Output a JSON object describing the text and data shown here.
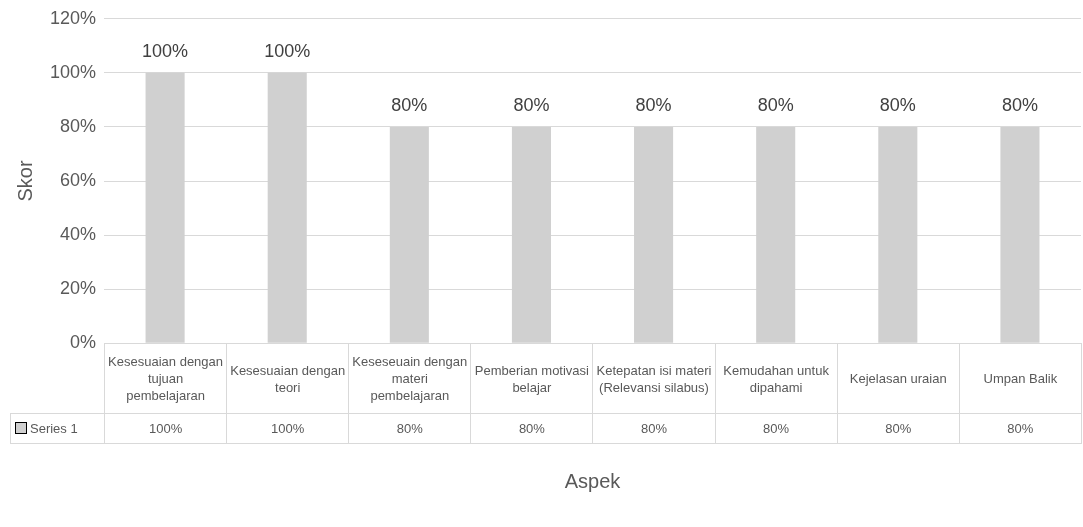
{
  "chart_data": {
    "type": "bar",
    "xlabel": "Aspek",
    "ylabel": "Skor",
    "categories": [
      "Kesesuaian dengan tujuan pembelajaran",
      "Kesesuaian dengan teori",
      "Keseseuain dengan materi pembelajaran",
      "Pemberian motivasi belajar",
      "Ketepatan isi materi (Relevansi silabus)",
      "Kemudahan untuk dipahami",
      "Kejelasan uraian",
      "Umpan Balik"
    ],
    "series": [
      {
        "name": "Series 1",
        "color": "#d0d0d0",
        "values": [
          100,
          100,
          80,
          80,
          80,
          80,
          80,
          80
        ],
        "value_labels": [
          "100%",
          "100%",
          "80%",
          "80%",
          "80%",
          "80%",
          "80%",
          "80%"
        ]
      }
    ],
    "ylim": [
      0,
      120
    ],
    "yticks": [
      {
        "value": 0,
        "label": "0%"
      },
      {
        "value": 20,
        "label": "20%"
      },
      {
        "value": 40,
        "label": "40%"
      },
      {
        "value": 60,
        "label": "60%"
      },
      {
        "value": 80,
        "label": "80%"
      },
      {
        "value": 100,
        "label": "100%"
      },
      {
        "value": 120,
        "label": "120%"
      }
    ],
    "grid": "y",
    "legend": "bottom"
  }
}
